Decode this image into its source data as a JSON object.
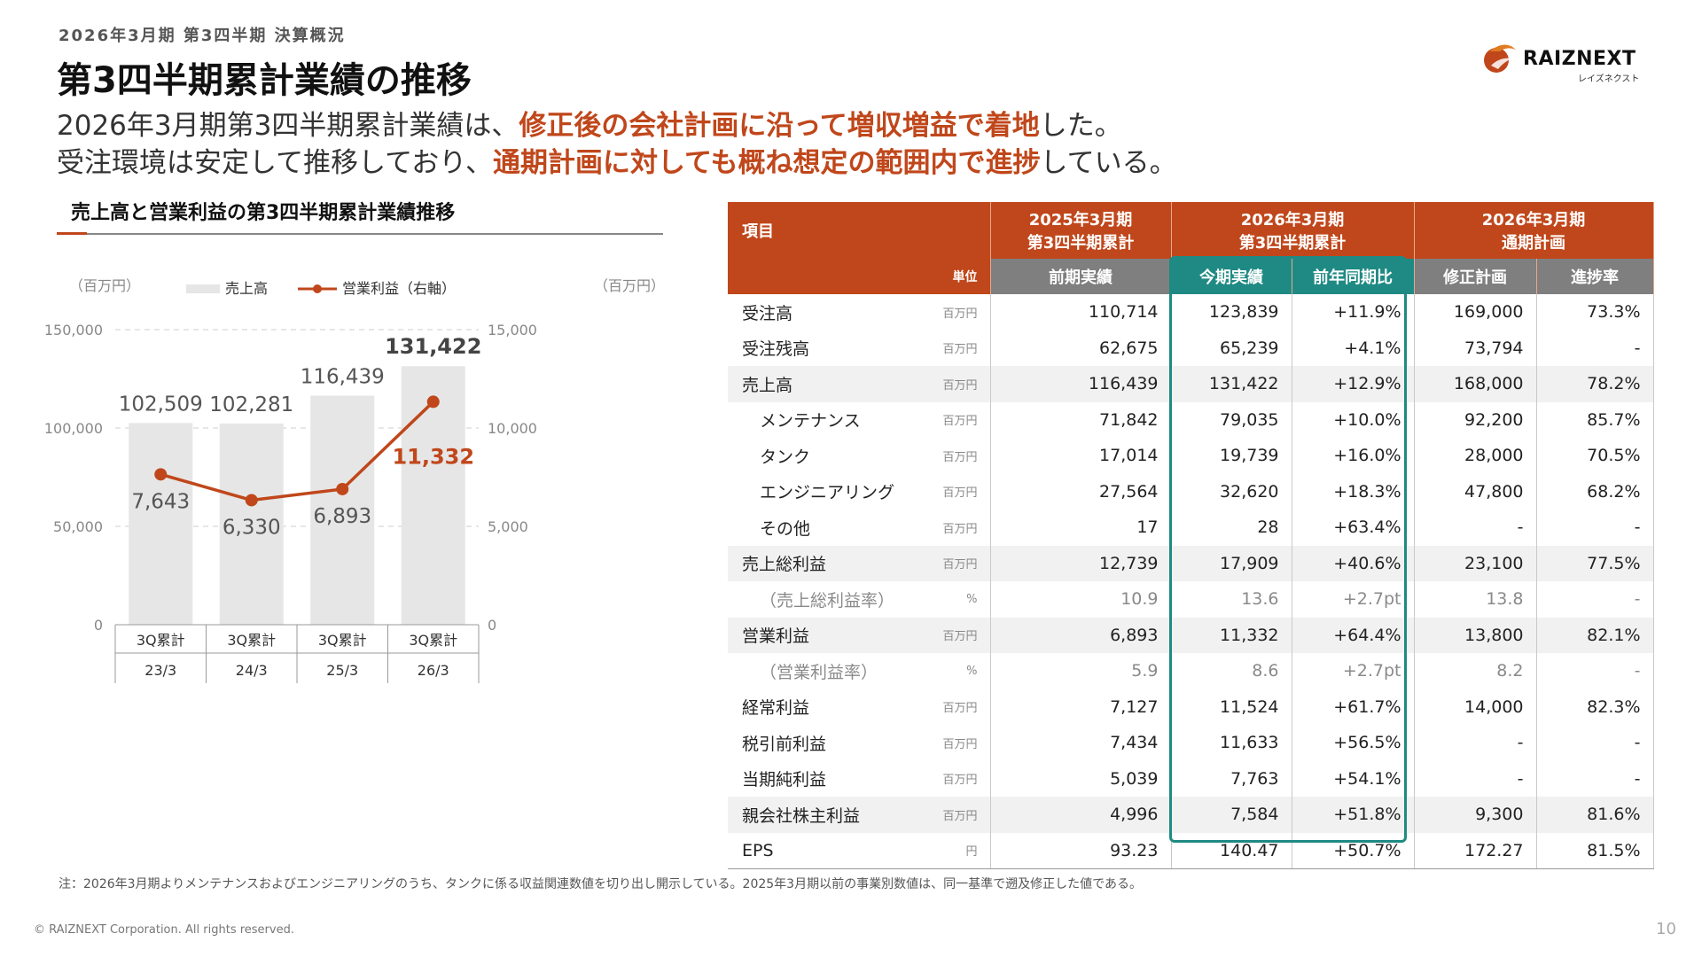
{
  "header": {
    "kicker": "2026年3月期 第3四半期 決算概況",
    "title": "第3四半期累計業績の推移"
  },
  "lead": {
    "line1_pre": "2026年3月期第3四半期累計業績は、",
    "line1_hl": "修正後の会社計画に沿って増収増益で着地",
    "line1_post": "した。",
    "line2_pre": "受注環境は安定して推移しており、",
    "line2_hl": "通期計画に対しても概ね想定の範囲内で進捗",
    "line2_post": "している。"
  },
  "logo": {
    "name": "RAIZNEXT",
    "sub": "レイズネクスト"
  },
  "colors": {
    "accent": "#c0471b",
    "teal": "#1f8a83",
    "bar": "#e6e6e6",
    "grey_header": "#7f7f7f"
  },
  "chart_title": "売上高と営業利益の第3四半期累計業績推移",
  "chart_data": {
    "type": "bar",
    "left_unit": "（百万円）",
    "right_unit": "（百万円）",
    "legend": {
      "bar": "売上高",
      "line": "営業利益（右軸）"
    },
    "legend_position": "top",
    "categories": [
      {
        "line1": "3Q累計",
        "line2": "23/3"
      },
      {
        "line1": "3Q累計",
        "line2": "24/3"
      },
      {
        "line1": "3Q累計",
        "line2": "25/3"
      },
      {
        "line1": "3Q累計",
        "line2": "26/3"
      }
    ],
    "series": [
      {
        "name": "売上高",
        "type": "bar",
        "axis": "left",
        "values": [
          102509,
          102281,
          116439,
          131422
        ],
        "labels": [
          "102,509",
          "102,281",
          "116,439",
          "131,422"
        ]
      },
      {
        "name": "営業利益（右軸）",
        "type": "line",
        "axis": "right",
        "values": [
          7643,
          6330,
          6893,
          11332
        ],
        "labels": [
          "7,643",
          "6,330",
          "6,893",
          "11,332"
        ]
      }
    ],
    "y_left": {
      "min": 0,
      "max": 150000,
      "ticks": [
        0,
        50000,
        100000,
        150000
      ],
      "tick_labels": [
        "0",
        "50,000",
        "100,000",
        "150,000"
      ]
    },
    "y_right": {
      "min": 0,
      "max": 15000,
      "ticks": [
        0,
        5000,
        10000,
        15000
      ],
      "tick_labels": [
        "0",
        "5,000",
        "10,000",
        "15,000"
      ]
    },
    "grid": true
  },
  "table": {
    "header1": {
      "item": "項目",
      "col_2025": [
        "2025年3月期",
        "第3四半期累計"
      ],
      "col_2026": [
        "2026年3月期",
        "第3四半期累計"
      ],
      "col_plan": [
        "2026年3月期",
        "通期計画"
      ]
    },
    "header2": {
      "unit": "単位",
      "prev": "前期実績",
      "curr": "今期実績",
      "yoy": "前年同期比",
      "plan": "修正計画",
      "progress": "進捗率"
    },
    "rows": [
      {
        "label": "受注高",
        "unit": "百万円",
        "prev": "110,714",
        "curr": "123,839",
        "yoy": "+11.9%",
        "plan": "169,000",
        "progress": "73.3%",
        "indent": false,
        "shade": false,
        "muted": false
      },
      {
        "label": "受注残高",
        "unit": "百万円",
        "prev": "62,675",
        "curr": "65,239",
        "yoy": "+4.1%",
        "plan": "73,794",
        "progress": "-",
        "indent": false,
        "shade": false,
        "muted": false
      },
      {
        "label": "売上高",
        "unit": "百万円",
        "prev": "116,439",
        "curr": "131,422",
        "yoy": "+12.9%",
        "plan": "168,000",
        "progress": "78.2%",
        "indent": false,
        "shade": true,
        "muted": false
      },
      {
        "label": "メンテナンス",
        "unit": "百万円",
        "prev": "71,842",
        "curr": "79,035",
        "yoy": "+10.0%",
        "plan": "92,200",
        "progress": "85.7%",
        "indent": true,
        "shade": false,
        "muted": false
      },
      {
        "label": "タンク",
        "unit": "百万円",
        "prev": "17,014",
        "curr": "19,739",
        "yoy": "+16.0%",
        "plan": "28,000",
        "progress": "70.5%",
        "indent": true,
        "shade": false,
        "muted": false
      },
      {
        "label": "エンジニアリング",
        "unit": "百万円",
        "prev": "27,564",
        "curr": "32,620",
        "yoy": "+18.3%",
        "plan": "47,800",
        "progress": "68.2%",
        "indent": true,
        "shade": false,
        "muted": false
      },
      {
        "label": "その他",
        "unit": "百万円",
        "prev": "17",
        "curr": "28",
        "yoy": "+63.4%",
        "plan": "-",
        "progress": "-",
        "indent": true,
        "shade": false,
        "muted": false
      },
      {
        "label": "売上総利益",
        "unit": "百万円",
        "prev": "12,739",
        "curr": "17,909",
        "yoy": "+40.6%",
        "plan": "23,100",
        "progress": "77.5%",
        "indent": false,
        "shade": true,
        "muted": false
      },
      {
        "label": "（売上総利益率）",
        "unit": "%",
        "prev": "10.9",
        "curr": "13.6",
        "yoy": "+2.7pt",
        "plan": "13.8",
        "progress": "-",
        "indent": true,
        "shade": false,
        "muted": true
      },
      {
        "label": "営業利益",
        "unit": "百万円",
        "prev": "6,893",
        "curr": "11,332",
        "yoy": "+64.4%",
        "plan": "13,800",
        "progress": "82.1%",
        "indent": false,
        "shade": true,
        "muted": false
      },
      {
        "label": "（営業利益率）",
        "unit": "%",
        "prev": "5.9",
        "curr": "8.6",
        "yoy": "+2.7pt",
        "plan": "8.2",
        "progress": "-",
        "indent": true,
        "shade": false,
        "muted": true
      },
      {
        "label": "経常利益",
        "unit": "百万円",
        "prev": "7,127",
        "curr": "11,524",
        "yoy": "+61.7%",
        "plan": "14,000",
        "progress": "82.3%",
        "indent": false,
        "shade": false,
        "muted": false
      },
      {
        "label": "税引前利益",
        "unit": "百万円",
        "prev": "7,434",
        "curr": "11,633",
        "yoy": "+56.5%",
        "plan": "-",
        "progress": "-",
        "indent": false,
        "shade": false,
        "muted": false
      },
      {
        "label": "当期純利益",
        "unit": "百万円",
        "prev": "5,039",
        "curr": "7,763",
        "yoy": "+54.1%",
        "plan": "-",
        "progress": "-",
        "indent": false,
        "shade": false,
        "muted": false
      },
      {
        "label": "親会社株主利益",
        "unit": "百万円",
        "prev": "4,996",
        "curr": "7,584",
        "yoy": "+51.8%",
        "plan": "9,300",
        "progress": "81.6%",
        "indent": false,
        "shade": true,
        "muted": false
      },
      {
        "label": "EPS",
        "unit": "円",
        "prev": "93.23",
        "curr": "140.47",
        "yoy": "+50.7%",
        "plan": "172.27",
        "progress": "81.5%",
        "indent": false,
        "shade": false,
        "muted": false
      }
    ]
  },
  "footnote": "注：2026年3月期よりメンテナンスおよびエンジニアリングのうち、タンクに係る収益関連数値を切り出し開示している。2025年3月期以前の事業別数値は、同一基準で遡及修正した値である。",
  "copyright": "© RAIZNEXT Corporation. All rights reserved.",
  "page_number": "10"
}
